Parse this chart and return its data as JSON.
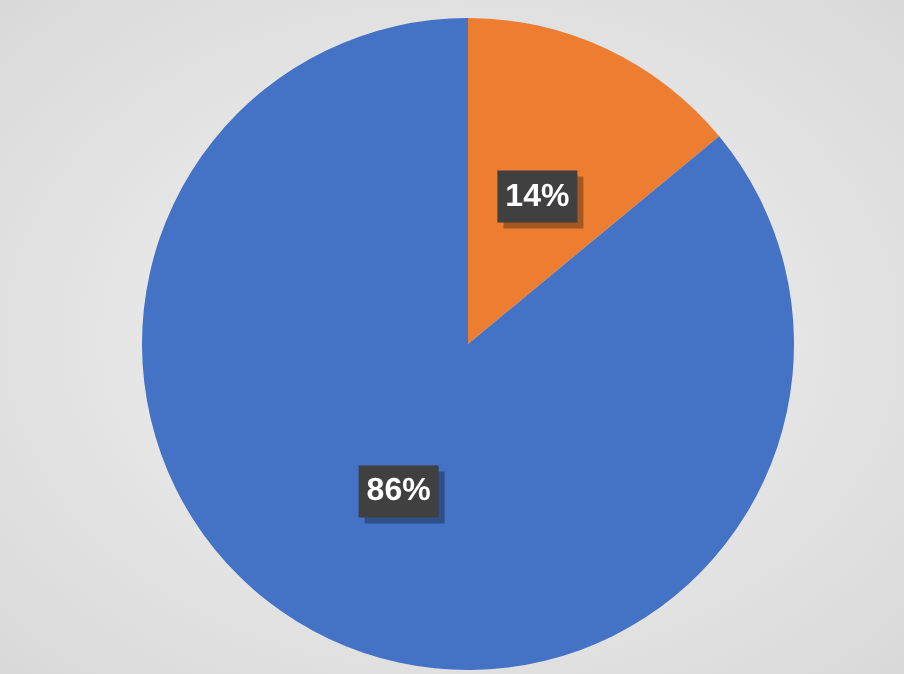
{
  "chart_data": {
    "type": "pie",
    "categories": [
      null,
      null
    ],
    "values": [
      14,
      86
    ],
    "colors": [
      "#ed7d31",
      "#4472c4"
    ],
    "value_labels": [
      "14%",
      "86%"
    ]
  }
}
